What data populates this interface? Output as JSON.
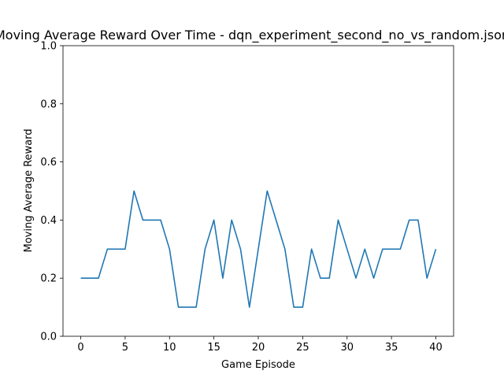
{
  "chart_data": {
    "type": "line",
    "title": "Moving Average Reward Over Time - dqn_experiment_second_no_vs_random.json",
    "xlabel": "Game Episode",
    "ylabel": "Moving Average Reward",
    "xlim": [
      -2,
      42
    ],
    "ylim": [
      0,
      1
    ],
    "xticks": [
      0,
      5,
      10,
      15,
      20,
      25,
      30,
      35,
      40
    ],
    "yticks": [
      0.0,
      0.2,
      0.4,
      0.6,
      0.8,
      1.0
    ],
    "ytick_labels": [
      "0.0",
      "0.2",
      "0.4",
      "0.6",
      "0.8",
      "1.0"
    ],
    "grid": false,
    "series": [
      {
        "color": "#1f77b4",
        "x": [
          0,
          1,
          2,
          3,
          4,
          5,
          6,
          7,
          8,
          9,
          10,
          11,
          12,
          13,
          14,
          15,
          16,
          17,
          18,
          19,
          20,
          21,
          22,
          23,
          24,
          25,
          26,
          27,
          28,
          29,
          30,
          31,
          32,
          33,
          34,
          35,
          36,
          37,
          38,
          39,
          40
        ],
        "values": [
          0.2,
          0.2,
          0.2,
          0.3,
          0.3,
          0.3,
          0.5,
          0.4,
          0.4,
          0.4,
          0.3,
          0.1,
          0.1,
          0.1,
          0.3,
          0.4,
          0.2,
          0.4,
          0.3,
          0.1,
          0.3,
          0.5,
          0.4,
          0.3,
          0.1,
          0.1,
          0.3,
          0.2,
          0.2,
          0.4,
          0.3,
          0.2,
          0.3,
          0.2,
          0.3,
          0.3,
          0.3,
          0.4,
          0.4,
          0.2,
          0.3
        ]
      }
    ]
  }
}
